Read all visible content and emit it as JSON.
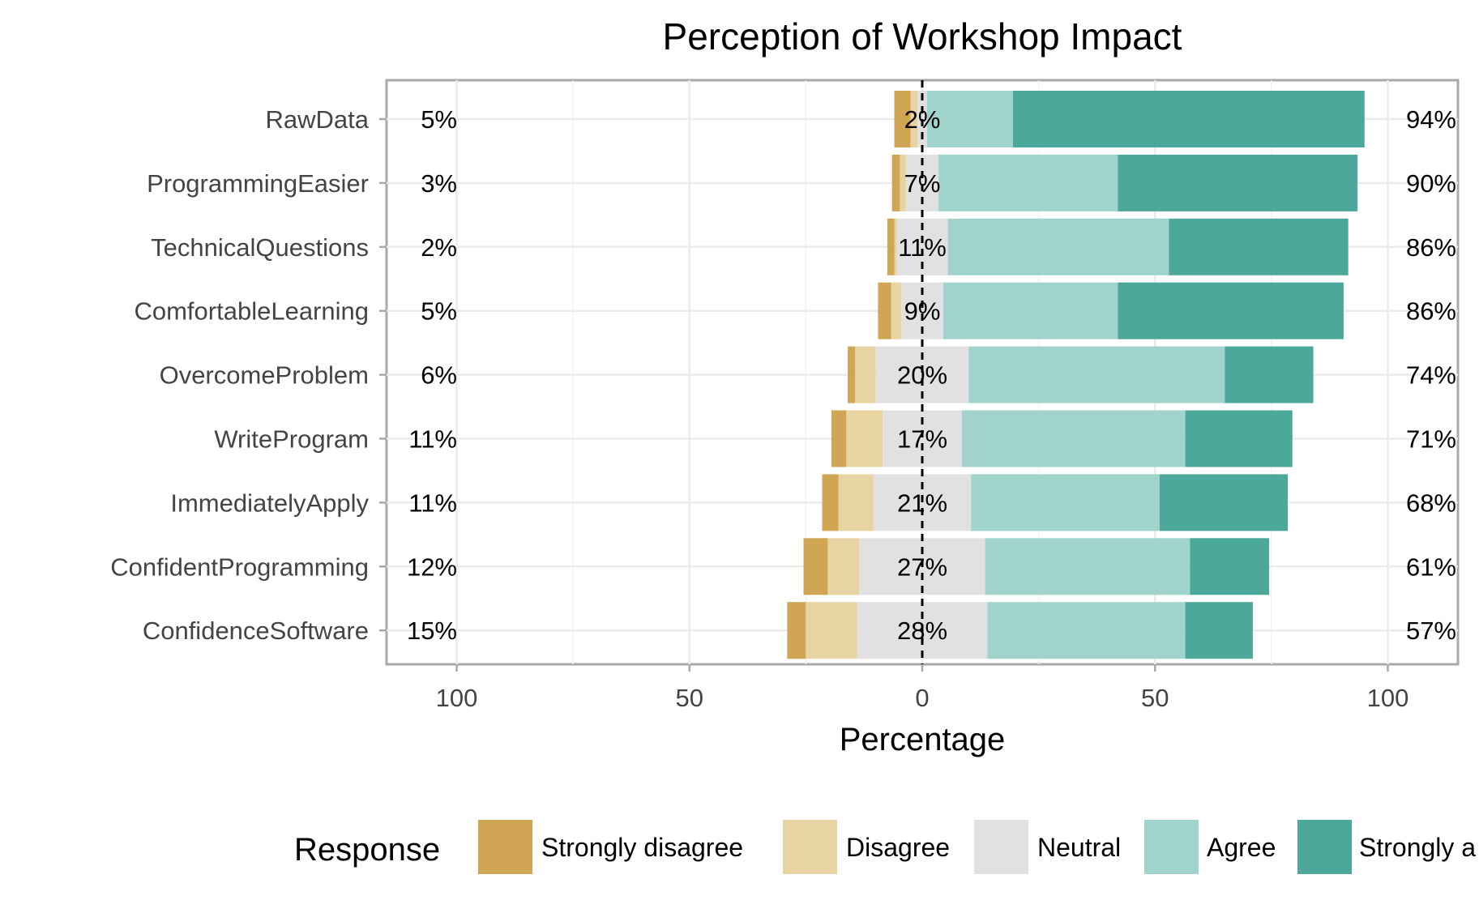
{
  "chart_data": {
    "type": "bar",
    "orientation": "horizontal",
    "stacked": "diverging",
    "title": "Perception of Workshop Impact",
    "xlabel": "Percentage",
    "ylabel": "",
    "xlim": [
      -100,
      100
    ],
    "x_ticks": [
      -100,
      -50,
      0,
      50,
      100
    ],
    "x_tick_labels": [
      "100",
      "50",
      "0",
      "50",
      "100"
    ],
    "grid": true,
    "legend_title": "Response",
    "legend_position": "bottom",
    "categories": [
      "RawData",
      "ProgrammingEasier",
      "TechnicalQuestions",
      "ComfortableLearning",
      "OvercomeProblem",
      "WriteProgram",
      "ImmediatelyApply",
      "ConfidentProgramming",
      "ConfidenceSoftware"
    ],
    "series": [
      {
        "name": "Strongly disagree",
        "color": "#D0A553",
        "values": [
          3.5,
          1.7,
          1.5,
          2.8,
          1.6,
          3.2,
          3.5,
          5.2,
          4.0
        ]
      },
      {
        "name": "Disagree",
        "color": "#E8D3A2",
        "values": [
          1.5,
          1.3,
          0.5,
          2.2,
          4.4,
          7.8,
          7.5,
          6.8,
          11.0
        ]
      },
      {
        "name": "Neutral",
        "color": "#E1E1E1",
        "values": [
          2,
          7,
          11,
          9,
          20,
          17,
          21,
          27,
          28
        ]
      },
      {
        "name": "Agree",
        "color": "#A0D3CB",
        "values": [
          18.5,
          38.5,
          47.5,
          37.5,
          55,
          48,
          40.5,
          44,
          42.5
        ]
      },
      {
        "name": "Strongly agree",
        "color": "#4BA89A",
        "values": [
          75.5,
          51.5,
          38.5,
          48.5,
          19,
          23,
          27.5,
          17,
          14.5
        ]
      }
    ],
    "left_labels": [
      "5%",
      "3%",
      "2%",
      "5%",
      "6%",
      "11%",
      "11%",
      "12%",
      "15%"
    ],
    "center_labels": [
      "2%",
      "7%",
      "11%",
      "9%",
      "20%",
      "17%",
      "21%",
      "27%",
      "28%"
    ],
    "right_labels": [
      "94%",
      "90%",
      "86%",
      "86%",
      "74%",
      "71%",
      "68%",
      "61%",
      "57%"
    ],
    "legend_visible_labels": [
      "Strongly disagree",
      "Disagree",
      "Neutral",
      "Agree",
      "Strongly a"
    ]
  }
}
